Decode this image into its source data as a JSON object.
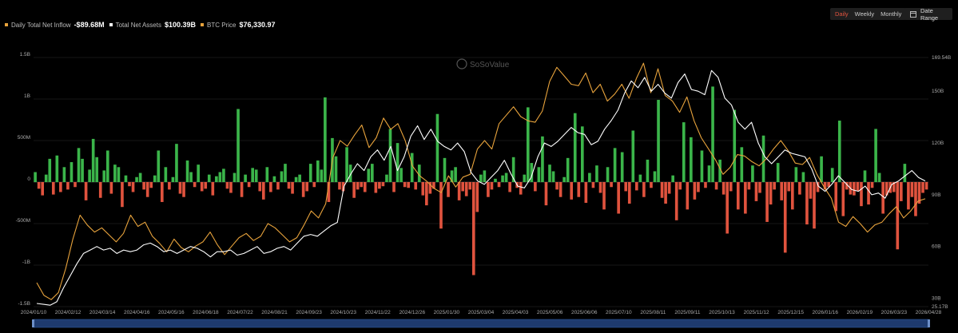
{
  "legend": [
    {
      "label": "Daily Total Net Inflow",
      "value": "-$89.68M",
      "color": "#e8a33c"
    },
    {
      "label": "Total Net Assets",
      "value": "$100.39B",
      "color": "#ffffff"
    },
    {
      "label": "BTC Price",
      "value": "$76,330.97",
      "color": "#e8a33c"
    }
  ],
  "controls": {
    "tabs": [
      "Daily",
      "Weekly",
      "Monthly"
    ],
    "active_tab": "Daily",
    "date_range_label": "Date Range"
  },
  "watermark": "SoSoValue",
  "colors": {
    "inflow_positive": "#3bb54a",
    "inflow_negative": "#e0533e",
    "total_net_assets": "#ffffff",
    "btc_price": "#e8a33c",
    "navigator": "#1e3a6e"
  },
  "chart_data": {
    "type": "bar",
    "grid": true,
    "x_tick_labels": [
      "2024/01/10",
      "2024/02/12",
      "2024/03/14",
      "2024/04/16",
      "2024/05/16",
      "2024/06/18",
      "2024/07/22",
      "2024/08/21",
      "2024/09/23",
      "2024/10/23",
      "2024/11/22",
      "2024/12/26",
      "2025/01/30",
      "2025/03/04",
      "2025/04/03",
      "2025/05/06",
      "2025/06/06",
      "2025/07/10",
      "2025/08/11",
      "2025/09/11",
      "2025/10/13",
      "2025/11/12",
      "2025/12/15",
      "2026/01/16",
      "2026/02/19",
      "2026/03/23",
      "2026/04/28"
    ],
    "y_left": {
      "name": "Daily Total Net Inflow",
      "ticks": [
        "1.5B",
        "1B",
        "500M",
        "0",
        "-500M",
        "-1B",
        "-1.5B"
      ],
      "tick_values": [
        1500,
        1000,
        500,
        0,
        -500,
        -1000,
        -1500
      ],
      "range": [
        -1500,
        1500
      ],
      "unit": "M USD"
    },
    "y_right": {
      "name": "Total Net Assets",
      "ticks": [
        "169.54B",
        "150B",
        "120B",
        "90B",
        "60B",
        "30B",
        "25.17B"
      ],
      "tick_values": [
        169.54,
        150,
        120,
        90,
        60,
        30,
        25.17
      ],
      "range": [
        25.17,
        169.54
      ],
      "unit": "B USD"
    },
    "series": [
      {
        "name": "Daily Total Net Inflow",
        "kind": "bar",
        "axis": "left",
        "values": [
          120,
          -80,
          -160,
          90,
          280,
          -150,
          320,
          -120,
          180,
          -90,
          240,
          -60,
          410,
          280,
          -220,
          150,
          520,
          300,
          -190,
          140,
          380,
          -140,
          210,
          180,
          -300,
          80,
          -50,
          -120,
          60,
          110,
          -90,
          -180,
          -70,
          80,
          380,
          -240,
          180,
          -90,
          60,
          460,
          -140,
          -180,
          260,
          120,
          -60,
          210,
          -110,
          -80,
          90,
          -160,
          70,
          120,
          160,
          -80,
          -130,
          110,
          880,
          -180,
          90,
          -60,
          170,
          150,
          -110,
          -210,
          180,
          -120,
          70,
          -90,
          130,
          220,
          -80,
          -140,
          60,
          90,
          -180,
          -110,
          220,
          -60,
          260,
          150,
          1020,
          -240,
          530,
          310,
          -90,
          -110,
          420,
          210,
          -190,
          -90,
          -60,
          -120,
          160,
          220,
          -130,
          -80,
          -50,
          90,
          640,
          -120,
          470,
          170,
          -60,
          -70,
          350,
          -90,
          210,
          -160,
          -280,
          -140,
          -80,
          820,
          -560,
          290,
          -180,
          140,
          180,
          -220,
          -110,
          -170,
          -90,
          -1120,
          -360,
          90,
          140,
          -180,
          -90,
          40,
          -60,
          80,
          110,
          -120,
          300,
          -70,
          -150,
          90,
          900,
          230,
          -110,
          180,
          550,
          -280,
          210,
          130,
          -90,
          -180,
          60,
          290,
          -210,
          830,
          -180,
          670,
          -250,
          110,
          -70,
          200,
          -130,
          -330,
          180,
          -60,
          410,
          -380,
          360,
          -110,
          -260,
          620,
          -100,
          90,
          -180,
          270,
          -70,
          130,
          990,
          -190,
          -260,
          -140,
          80,
          -460,
          -90,
          720,
          -330,
          540,
          -210,
          -120,
          380,
          -70,
          200,
          1150,
          -90,
          270,
          -150,
          -620,
          -110,
          870,
          -330,
          420,
          -380,
          -90,
          200,
          -230,
          -130,
          560,
          -480,
          -270,
          -90,
          230,
          -220,
          -850,
          -110,
          -330,
          180,
          -150,
          120,
          -510,
          -200,
          -560,
          -120,
          310,
          -90,
          -60,
          170,
          -350,
          740,
          -410,
          -90,
          -150,
          -160,
          -110,
          -290,
          140,
          -270,
          -70,
          640,
          110,
          -380,
          -160,
          -130,
          -120,
          -810,
          -230,
          220,
          -330,
          -180,
          -410,
          -260,
          -130,
          -90
        ]
      },
      {
        "name": "Total Net Assets",
        "kind": "line",
        "axis": "right",
        "unit": "B USD",
        "values": [
          27,
          26.5,
          26,
          28,
          36,
          43,
          50,
          56,
          58,
          60,
          58,
          59,
          56,
          58,
          57,
          58,
          61,
          62,
          60,
          57,
          58,
          56,
          58,
          60,
          59,
          57,
          54,
          57,
          57,
          58,
          55,
          56,
          58,
          60,
          56,
          57,
          59,
          60,
          58,
          62,
          66,
          67,
          66,
          69,
          72,
          74,
          95,
          102,
          108,
          104,
          112,
          116,
          110,
          118,
          104,
          112,
          124,
          130,
          122,
          128,
          121,
          118,
          116,
          120,
          115,
          103,
          98,
          96,
          100,
          104,
          110,
          102,
          95,
          94,
          100,
          112,
          120,
          118,
          121,
          125,
          129,
          126,
          125,
          119,
          121,
          128,
          133,
          139,
          149,
          156,
          152,
          158,
          150,
          154,
          149,
          146,
          155,
          160,
          151,
          150,
          148,
          162,
          158,
          146,
          142,
          132,
          128,
          132,
          120,
          112,
          108,
          112,
          116,
          114,
          113,
          112,
          105,
          95,
          92,
          96,
          101,
          97,
          93,
          92,
          95,
          90,
          91,
          88,
          96,
          98,
          101,
          104,
          100,
          98
        ]
      },
      {
        "name": "BTC Price",
        "kind": "line",
        "axis": "right",
        "values": [
          46500,
          42000,
          40500,
          43000,
          51500,
          62000,
          70500,
          67000,
          64500,
          66000,
          63500,
          61000,
          64000,
          70500,
          66500,
          68000,
          63000,
          60500,
          57500,
          62000,
          59000,
          57500,
          59500,
          61000,
          64500,
          60000,
          56500,
          59500,
          62500,
          64000,
          61500,
          63000,
          67500,
          66000,
          63500,
          61000,
          62500,
          67000,
          72000,
          69500,
          74500,
          91000,
          97000,
          95000,
          99000,
          102500,
          94500,
          98000,
          105000,
          101000,
          103000,
          97000,
          88000,
          84500,
          82500,
          80000,
          78500,
          84500,
          80500,
          84000,
          85000,
          94000,
          97000,
          94000,
          103000,
          106000,
          109000,
          105500,
          104000,
          103500,
          107500,
          118000,
          123000,
          120000,
          117000,
          116500,
          121000,
          114000,
          117000,
          111000,
          113500,
          117000,
          112000,
          119000,
          124500,
          114000,
          122500,
          113000,
          111000,
          107000,
          112500,
          104000,
          98000,
          94000,
          90000,
          85000,
          87500,
          92000,
          91500,
          89500,
          88000,
          90500,
          94000,
          97000,
          93500,
          89000,
          88500,
          91000,
          85000,
          80500,
          76500,
          68000,
          66500,
          70000,
          67500,
          64500,
          67000,
          68000,
          71000,
          73500,
          69500,
          72000,
          75500,
          76330
        ]
      }
    ]
  }
}
